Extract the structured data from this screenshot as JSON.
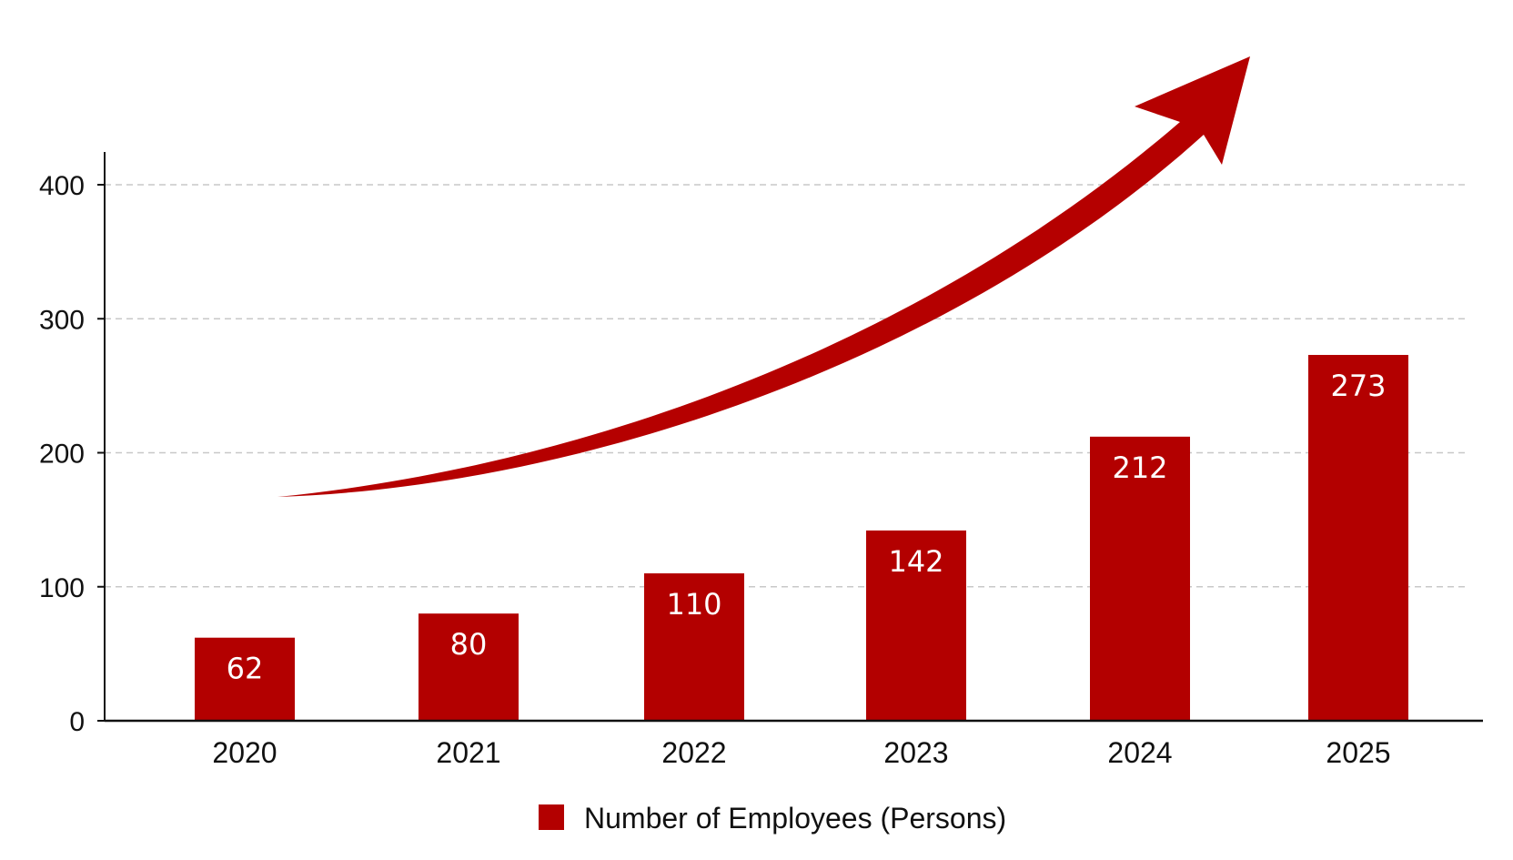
{
  "chart_data": {
    "type": "bar",
    "categories": [
      "2020",
      "2021",
      "2022",
      "2023",
      "2024",
      "2025"
    ],
    "series": [
      {
        "name": "Number of Employees (Persons)",
        "values": [
          62,
          80,
          110,
          142,
          212,
          273
        ]
      }
    ],
    "data_labels": [
      "62",
      "80",
      "110",
      "142",
      "212",
      "273"
    ],
    "ylim": [
      0,
      400
    ],
    "yticks": [
      0,
      100,
      200,
      300,
      400
    ],
    "grid": "horizontal-dashed",
    "legend_position": "bottom-center",
    "annotation": "upward-trend-arrow",
    "colors": {
      "bar": "#B30000",
      "arrow": "#B50000",
      "grid": "#c8c8c8",
      "axis": "#111111"
    }
  }
}
